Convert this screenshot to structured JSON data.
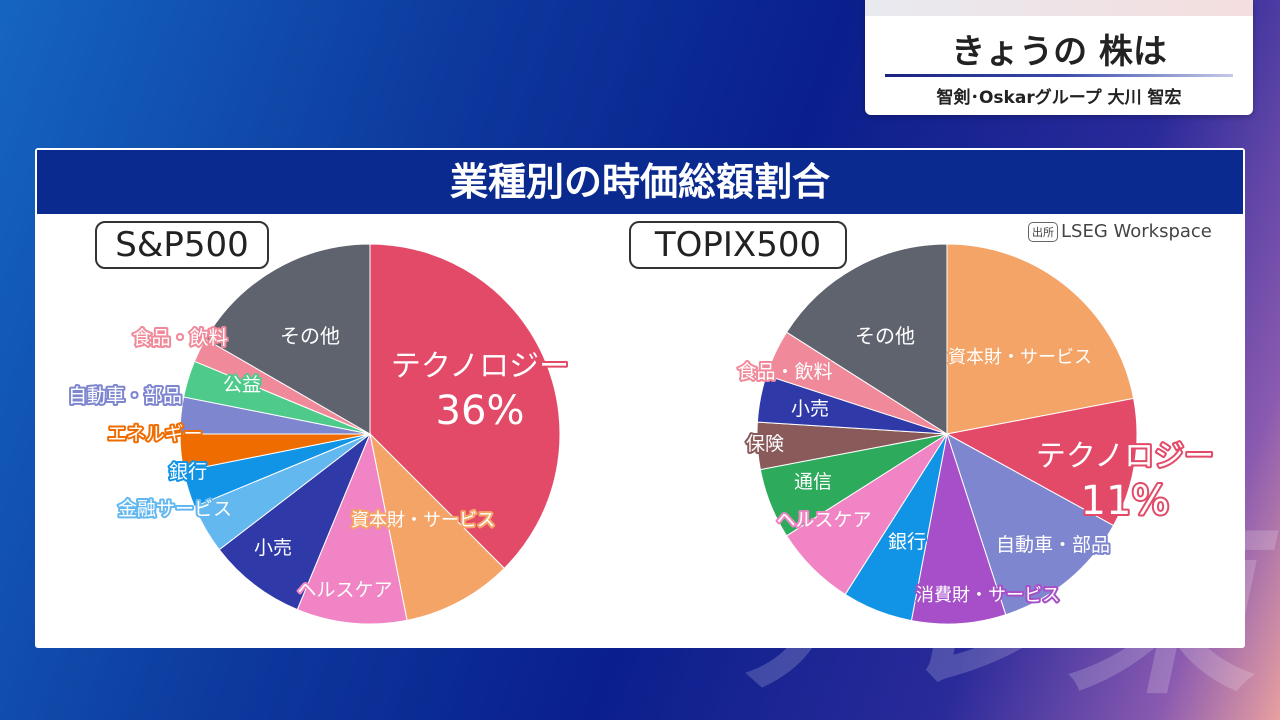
{
  "caption": {
    "title": "きょうの 株は",
    "subtitle": "智剣･Oskarグループ 大川 智宏"
  },
  "card": {
    "title": "業種別の時価総額割合"
  },
  "source": {
    "tag": "出所",
    "text": "LSEG Workspace"
  },
  "watermark": "テレ東",
  "chart_data": [
    {
      "type": "pie",
      "title": "S&P500",
      "slices": [
        {
          "label": "テクノロジー",
          "value": 36,
          "value_label": "36%",
          "color": "#e34a68"
        },
        {
          "label": "資本財・サービス",
          "value": 9,
          "color": "#f4a466"
        },
        {
          "label": "ヘルスケア",
          "value": 9,
          "color": "#f084c4"
        },
        {
          "label": "小売",
          "value": 8,
          "color": "#3039a8"
        },
        {
          "label": "金融サービス",
          "value": 4,
          "color": "#64b8f0"
        },
        {
          "label": "銀行",
          "value": 3,
          "color": "#1294e6"
        },
        {
          "label": "エネルギー",
          "value": 3,
          "color": "#ef6c00"
        },
        {
          "label": "自動車・部品",
          "value": 3,
          "color": "#7f86d0"
        },
        {
          "label": "公益",
          "value": 3,
          "color": "#4ecb8a"
        },
        {
          "label": "食品・飲料",
          "value": 2,
          "color": "#f08a9a"
        },
        {
          "label": "その他",
          "value": 16,
          "color": "#5f636e"
        }
      ]
    },
    {
      "type": "pie",
      "title": "TOPIX500",
      "slices": [
        {
          "label": "資本財・サービス",
          "value": 22,
          "color": "#f4a466"
        },
        {
          "label": "テクノロジー",
          "value": 11,
          "value_label": "11%",
          "color": "#e34a68"
        },
        {
          "label": "自動車・部品",
          "value": 12,
          "color": "#7f86d0"
        },
        {
          "label": "消費財・サービス",
          "value": 8,
          "color": "#a64fc8"
        },
        {
          "label": "銀行",
          "value": 6,
          "color": "#1294e6"
        },
        {
          "label": "ヘルスケア",
          "value": 7,
          "color": "#f084c4"
        },
        {
          "label": "通信",
          "value": 6,
          "color": "#2eaa5c"
        },
        {
          "label": "保険",
          "value": 4,
          "color": "#8a5a5a"
        },
        {
          "label": "小売",
          "value": 4,
          "color": "#3039a8"
        },
        {
          "label": "食品・飲料",
          "value": 4,
          "color": "#f08a9a"
        },
        {
          "label": "その他",
          "value": 16,
          "color": "#5f636e"
        }
      ]
    }
  ]
}
